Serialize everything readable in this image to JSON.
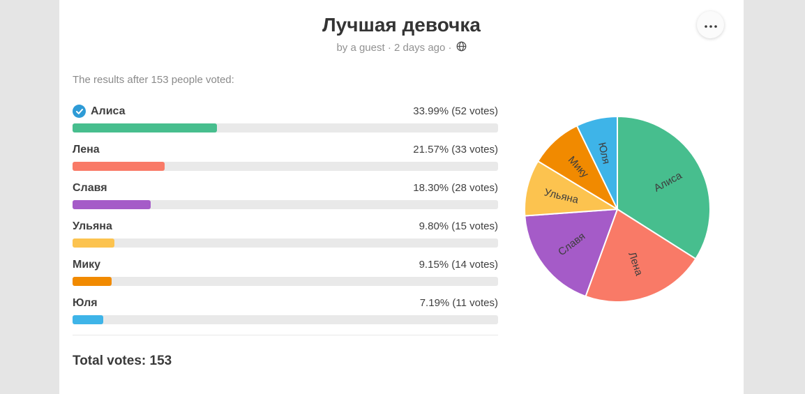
{
  "header": {
    "title": "Лучшая девочка",
    "byline": "by a guest · 2 days ago ·"
  },
  "results": {
    "intro": "The results after 153 people voted:",
    "total_label": "Total votes:",
    "total_value": "153"
  },
  "colors": {
    "page_bg": "#e5e5e5",
    "card_bg": "#ffffff",
    "bar_track": "#e9e9e9",
    "voted_check": "#2e9bd6"
  },
  "chart_data": {
    "type": "pie",
    "title": "Лучшая девочка",
    "total_votes": 153,
    "legend_position": "left-bar-list",
    "options": [
      {
        "label": "Алиса",
        "percent": 33.99,
        "votes": 52,
        "result_text": "33.99% (52 votes)",
        "color": "#47be8e",
        "voted": true
      },
      {
        "label": "Лена",
        "percent": 21.57,
        "votes": 33,
        "result_text": "21.57% (33 votes)",
        "color": "#f97a67",
        "voted": false
      },
      {
        "label": "Славя",
        "percent": 18.3,
        "votes": 28,
        "result_text": "18.30% (28 votes)",
        "color": "#a55bc8",
        "voted": false
      },
      {
        "label": "Ульяна",
        "percent": 9.8,
        "votes": 15,
        "result_text": "9.80% (15 votes)",
        "color": "#fcc34f",
        "voted": false
      },
      {
        "label": "Мику",
        "percent": 9.15,
        "votes": 14,
        "result_text": "9.15% (14 votes)",
        "color": "#f18a00",
        "voted": false
      },
      {
        "label": "Юля",
        "percent": 7.19,
        "votes": 11,
        "result_text": "7.19% (11 votes)",
        "color": "#3eb4e8",
        "voted": false
      }
    ]
  }
}
